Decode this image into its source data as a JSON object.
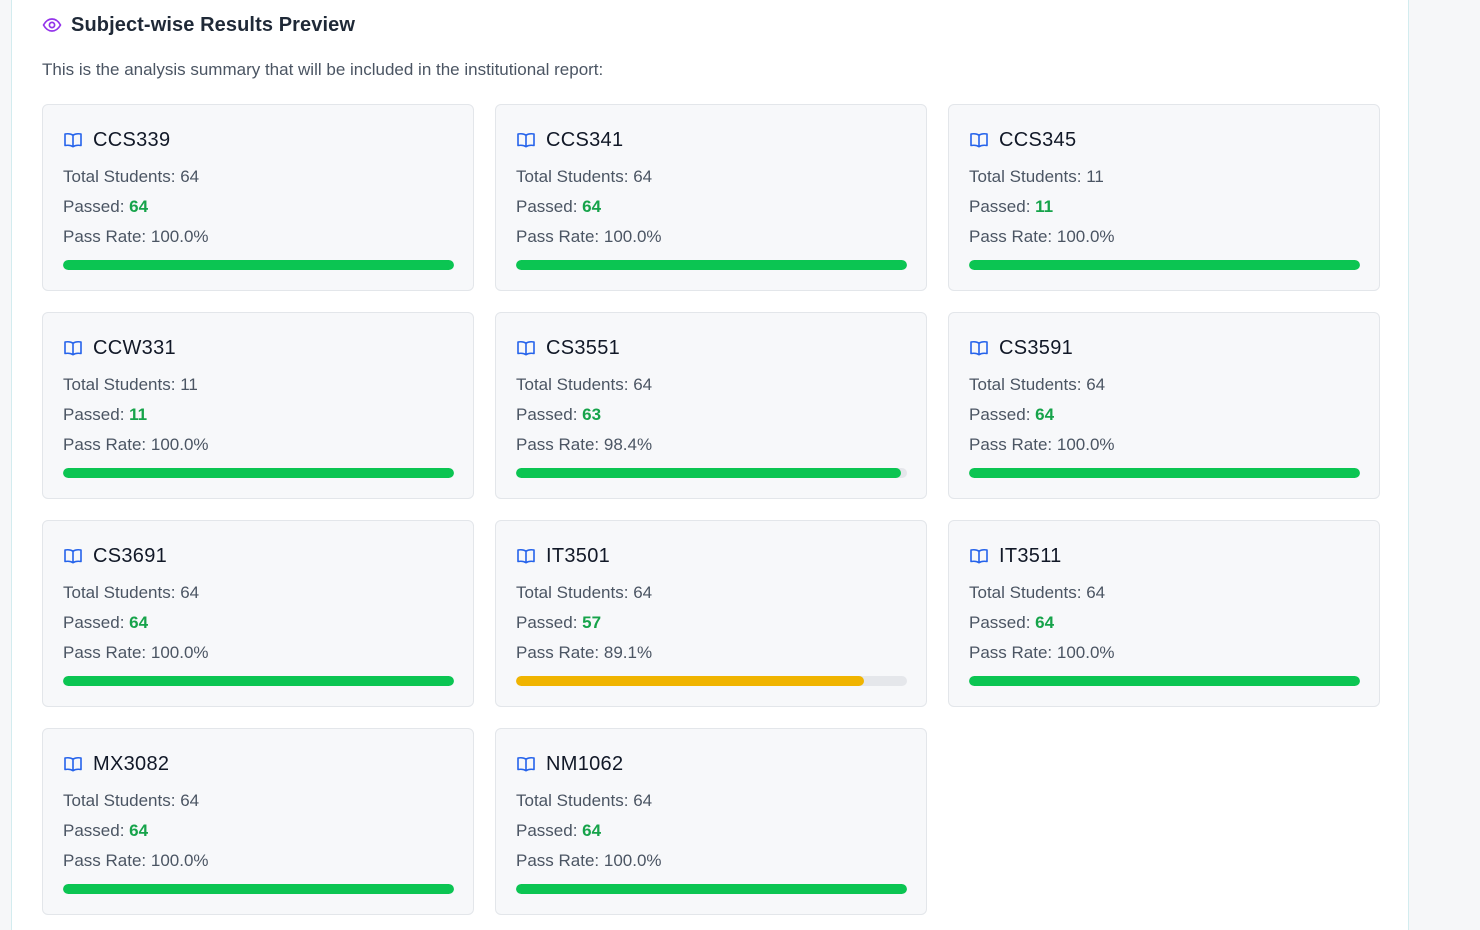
{
  "section": {
    "title": "Subject-wise Results Preview",
    "description": "This is the analysis summary that will be included in the institutional report:",
    "icon": "eye-icon"
  },
  "labels": {
    "total": "Total Students: ",
    "passed": "Passed: ",
    "rate": "Pass Rate: "
  },
  "colors": {
    "accent": "#9333ea",
    "book_icon": "#2563eb",
    "passed_text": "#16a34a",
    "bar_high": "#0bc552",
    "bar_mid": "#f0b400",
    "bar_track": "#e5e7eb"
  },
  "subjects": [
    {
      "code": "CCS339",
      "total": "64",
      "passed": "64",
      "rate": "100.0%",
      "fraction": 1.0,
      "level": "high"
    },
    {
      "code": "CCS341",
      "total": "64",
      "passed": "64",
      "rate": "100.0%",
      "fraction": 1.0,
      "level": "high"
    },
    {
      "code": "CCS345",
      "total": "11",
      "passed": "11",
      "rate": "100.0%",
      "fraction": 1.0,
      "level": "high"
    },
    {
      "code": "CCW331",
      "total": "11",
      "passed": "11",
      "rate": "100.0%",
      "fraction": 1.0,
      "level": "high"
    },
    {
      "code": "CS3551",
      "total": "64",
      "passed": "63",
      "rate": "98.4%",
      "fraction": 0.984,
      "level": "high"
    },
    {
      "code": "CS3591",
      "total": "64",
      "passed": "64",
      "rate": "100.0%",
      "fraction": 1.0,
      "level": "high"
    },
    {
      "code": "CS3691",
      "total": "64",
      "passed": "64",
      "rate": "100.0%",
      "fraction": 1.0,
      "level": "high"
    },
    {
      "code": "IT3501",
      "total": "64",
      "passed": "57",
      "rate": "89.1%",
      "fraction": 0.891,
      "level": "mid"
    },
    {
      "code": "IT3511",
      "total": "64",
      "passed": "64",
      "rate": "100.0%",
      "fraction": 1.0,
      "level": "high"
    },
    {
      "code": "MX3082",
      "total": "64",
      "passed": "64",
      "rate": "100.0%",
      "fraction": 1.0,
      "level": "high"
    },
    {
      "code": "NM1062",
      "total": "64",
      "passed": "64",
      "rate": "100.0%",
      "fraction": 1.0,
      "level": "high"
    }
  ]
}
